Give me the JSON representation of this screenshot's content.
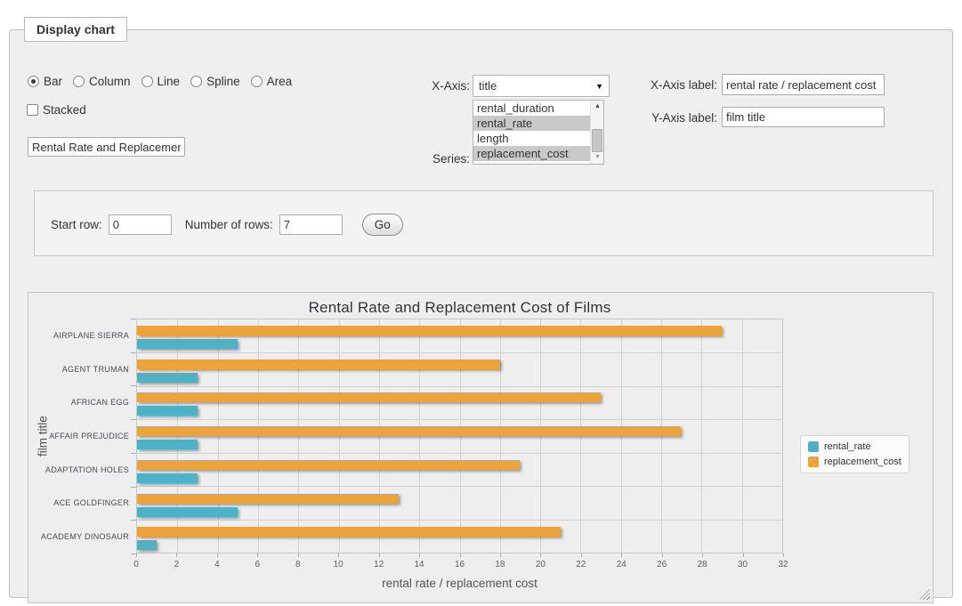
{
  "panel": {
    "legend": "Display chart"
  },
  "chart_type": {
    "options": [
      {
        "label": "Bar",
        "selected": true
      },
      {
        "label": "Column",
        "selected": false
      },
      {
        "label": "Line",
        "selected": false
      },
      {
        "label": "Spline",
        "selected": false
      },
      {
        "label": "Area",
        "selected": false
      }
    ]
  },
  "stacked": {
    "label": "Stacked",
    "checked": false
  },
  "chart_title_input": {
    "value": "Rental Rate and Replacement Cost of Films"
  },
  "x_axis_select": {
    "label": "X-Axis:",
    "value": "title"
  },
  "series_select": {
    "label": "Series:",
    "options": [
      {
        "label": "rental_duration",
        "selected": false
      },
      {
        "label": "rental_rate",
        "selected": true
      },
      {
        "label": "length",
        "selected": false
      },
      {
        "label": "replacement_cost",
        "selected": true
      }
    ]
  },
  "x_axis_label_field": {
    "label": "X-Axis label:",
    "value": "rental rate / replacement cost"
  },
  "y_axis_label_field": {
    "label": "Y-Axis label:",
    "value": "film title"
  },
  "rows_form": {
    "start_row_label": "Start row:",
    "start_row_value": "0",
    "number_of_rows_label": "Number of rows:",
    "number_of_rows_value": "7",
    "go_button_label": "Go"
  },
  "chart_data": {
    "type": "bar",
    "title": "Rental Rate and Replacement Cost of Films",
    "xlabel": "rental rate / replacement cost",
    "ylabel": "film title",
    "categories": [
      "AIRPLANE SIERRA",
      "AGENT TRUMAN",
      "AFRICAN EGG",
      "AFFAIR PREJUDICE",
      "ADAPTATION HOLES",
      "ACE GOLDFINGER",
      "ACADEMY DINOSAUR"
    ],
    "series": [
      {
        "name": "rental_rate",
        "color": "#4db2c5",
        "values": [
          4.99,
          2.99,
          2.99,
          2.99,
          2.99,
          4.99,
          0.99
        ]
      },
      {
        "name": "replacement_cost",
        "color": "#eba33a",
        "values": [
          28.99,
          17.99,
          22.99,
          26.99,
          18.99,
          12.99,
          20.99
        ]
      }
    ],
    "xlim": [
      0,
      32
    ],
    "xticks": [
      0,
      2,
      4,
      6,
      8,
      10,
      12,
      14,
      16,
      18,
      20,
      22,
      24,
      26,
      28,
      30,
      32
    ],
    "legend_position": "right",
    "grid": true
  }
}
